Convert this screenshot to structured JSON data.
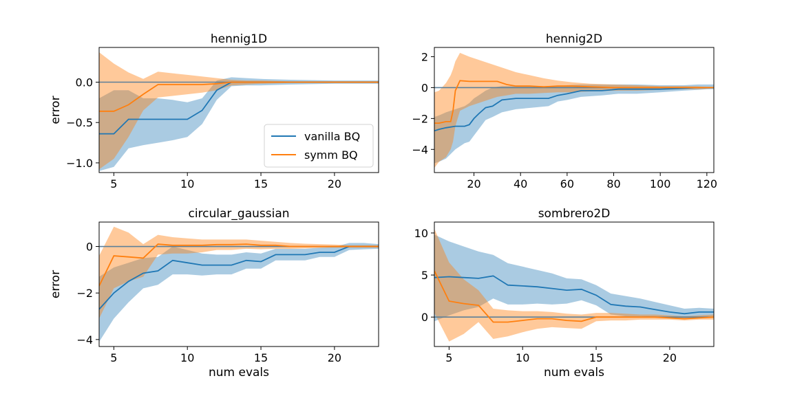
{
  "colors": {
    "vanilla": "#1f77b4",
    "symm": "#ff7f0e",
    "zero_line": "#5b7f99"
  },
  "legend": {
    "entries": [
      "vanilla BQ",
      "symm BQ"
    ],
    "placement": "lower-right",
    "panel": 0
  },
  "chart_data": [
    {
      "type": "line",
      "title": "hennig1D",
      "xlabel": "",
      "ylabel": "error",
      "xlim": [
        4,
        23
      ],
      "ylim": [
        -1.12,
        0.43
      ],
      "xticks": [
        5,
        10,
        15,
        20
      ],
      "yticks": [
        -1.0,
        -0.5,
        0.0
      ],
      "ytick_labels": [
        "−1.0",
        "−0.5",
        "0.0"
      ],
      "series": [
        {
          "name": "vanilla BQ",
          "x": [
            4,
            5,
            6,
            7,
            8,
            9,
            10,
            11,
            12,
            13,
            14,
            15,
            17,
            20,
            23
          ],
          "mean": [
            -0.64,
            -0.64,
            -0.46,
            -0.46,
            -0.46,
            -0.46,
            -0.46,
            -0.35,
            -0.1,
            0.0,
            0.0,
            0.0,
            0.0,
            0.0,
            0.0
          ],
          "upper": [
            -0.2,
            -0.1,
            -0.1,
            -0.2,
            -0.2,
            -0.22,
            -0.25,
            -0.2,
            0.02,
            0.06,
            0.05,
            0.04,
            0.03,
            0.02,
            0.02
          ],
          "lower": [
            -1.1,
            -1.05,
            -0.82,
            -0.78,
            -0.75,
            -0.72,
            -0.68,
            -0.52,
            -0.22,
            -0.05,
            -0.04,
            -0.04,
            -0.03,
            -0.02,
            -0.02
          ]
        },
        {
          "name": "symm BQ",
          "x": [
            4,
            5,
            6,
            7,
            8,
            9,
            10,
            11,
            12,
            13,
            14,
            15,
            17,
            20,
            23
          ],
          "mean": [
            -0.36,
            -0.36,
            -0.28,
            -0.15,
            -0.03,
            -0.03,
            -0.03,
            -0.03,
            -0.02,
            0.0,
            0.0,
            0.0,
            0.0,
            0.0,
            0.0
          ],
          "upper": [
            0.37,
            0.23,
            0.12,
            0.04,
            0.13,
            0.11,
            0.09,
            0.07,
            0.05,
            0.03,
            0.02,
            0.02,
            0.01,
            0.01,
            0.01
          ],
          "lower": [
            -1.08,
            -0.95,
            -0.68,
            -0.35,
            -0.19,
            -0.17,
            -0.15,
            -0.13,
            -0.1,
            -0.04,
            -0.03,
            -0.02,
            -0.01,
            -0.01,
            -0.01
          ]
        }
      ]
    },
    {
      "type": "line",
      "title": "hennig2D",
      "xlabel": "",
      "ylabel": "",
      "xlim": [
        3,
        123
      ],
      "ylim": [
        -5.5,
        2.6
      ],
      "xticks": [
        20,
        40,
        60,
        80,
        100,
        120
      ],
      "yticks": [
        -4,
        -2,
        0,
        2
      ],
      "ytick_labels": [
        "−4",
        "−2",
        "0",
        "2"
      ],
      "series": [
        {
          "name": "vanilla BQ",
          "x": [
            3,
            5,
            8,
            12,
            16,
            18,
            20,
            22,
            25,
            28,
            32,
            38,
            45,
            52,
            56,
            60,
            66,
            75,
            82,
            90,
            100,
            110,
            116,
            120,
            123
          ],
          "mean": [
            -2.8,
            -2.7,
            -2.6,
            -2.5,
            -2.5,
            -2.4,
            -2.0,
            -1.7,
            -1.3,
            -1.2,
            -0.8,
            -0.7,
            -0.7,
            -0.7,
            -0.5,
            -0.4,
            -0.2,
            -0.2,
            -0.1,
            -0.1,
            -0.1,
            -0.05,
            0.0,
            0.0,
            0.0
          ],
          "upper": [
            -1.9,
            -1.8,
            -1.6,
            -1.4,
            -1.2,
            -1.0,
            -0.7,
            -0.5,
            -0.2,
            0.0,
            0.1,
            0.1,
            0.1,
            0.1,
            0.1,
            0.15,
            0.2,
            0.2,
            0.2,
            0.2,
            0.15,
            0.15,
            0.2,
            0.2,
            0.2
          ],
          "lower": [
            -4.9,
            -4.8,
            -4.6,
            -4.0,
            -3.6,
            -3.5,
            -3.1,
            -2.7,
            -2.1,
            -1.9,
            -1.6,
            -1.4,
            -1.3,
            -1.2,
            -0.9,
            -0.8,
            -0.6,
            -0.5,
            -0.4,
            -0.4,
            -0.3,
            -0.2,
            -0.15,
            -0.1,
            -0.1
          ]
        },
        {
          "name": "symm BQ",
          "x": [
            3,
            5,
            8,
            10,
            11,
            12,
            14,
            18,
            22,
            26,
            30,
            34,
            38,
            44,
            50,
            56,
            62,
            70,
            80,
            90,
            100,
            110,
            116,
            120,
            123
          ],
          "mean": [
            -2.3,
            -2.3,
            -2.2,
            -2.2,
            -1.5,
            -0.2,
            0.45,
            0.4,
            0.4,
            0.4,
            0.4,
            0.2,
            0.1,
            0.1,
            0.05,
            0.1,
            0.1,
            0.05,
            0.0,
            0.0,
            0.0,
            0.0,
            0.0,
            0.0,
            0.0
          ],
          "upper": [
            -0.3,
            -0.2,
            0.3,
            0.8,
            1.2,
            1.7,
            2.25,
            2.0,
            1.8,
            1.6,
            1.4,
            1.2,
            1.0,
            0.8,
            0.6,
            0.45,
            0.35,
            0.25,
            0.2,
            0.15,
            0.1,
            0.1,
            0.08,
            0.05,
            0.05
          ],
          "lower": [
            -5.2,
            -4.8,
            -4.5,
            -4.0,
            -3.5,
            -2.5,
            -1.5,
            -1.2,
            -1.0,
            -0.8,
            -0.6,
            -0.5,
            -0.4,
            -0.4,
            -0.35,
            -0.3,
            -0.3,
            -0.25,
            -0.2,
            -0.2,
            -0.15,
            -0.1,
            -0.1,
            -0.08,
            -0.05
          ]
        }
      ]
    },
    {
      "type": "line",
      "title": "circular_gaussian",
      "xlabel": "num evals",
      "ylabel": "error",
      "xlim": [
        4,
        23
      ],
      "ylim": [
        -4.3,
        1.05
      ],
      "xticks": [
        5,
        10,
        15,
        20
      ],
      "yticks": [
        -4,
        -2,
        0
      ],
      "ytick_labels": [
        "−4",
        "−2",
        "0"
      ],
      "series": [
        {
          "name": "vanilla BQ",
          "x": [
            4,
            5,
            6,
            7,
            8,
            9,
            10,
            11,
            12,
            13,
            14,
            15,
            16,
            17,
            18,
            19,
            20,
            21,
            22,
            23
          ],
          "mean": [
            -2.7,
            -2.0,
            -1.5,
            -1.15,
            -1.05,
            -0.6,
            -0.7,
            -0.8,
            -0.8,
            -0.8,
            -0.6,
            -0.65,
            -0.35,
            -0.35,
            -0.35,
            -0.25,
            -0.25,
            0.0,
            0.0,
            0.0
          ],
          "upper": [
            -1.3,
            -0.9,
            -0.7,
            -0.5,
            -0.45,
            0.0,
            -0.15,
            -0.3,
            -0.35,
            -0.35,
            -0.25,
            -0.3,
            -0.1,
            -0.1,
            -0.1,
            -0.05,
            -0.02,
            0.15,
            0.15,
            0.1
          ],
          "lower": [
            -4.1,
            -3.1,
            -2.4,
            -1.8,
            -1.65,
            -1.2,
            -1.2,
            -1.25,
            -1.2,
            -1.2,
            -0.95,
            -0.95,
            -0.6,
            -0.6,
            -0.6,
            -0.45,
            -0.45,
            -0.15,
            -0.12,
            -0.1
          ]
        },
        {
          "name": "symm BQ",
          "x": [
            4,
            5,
            6,
            7,
            8,
            9,
            10,
            11,
            12,
            13,
            14,
            15,
            16,
            17,
            18,
            19,
            20,
            21,
            22,
            23
          ],
          "mean": [
            -1.7,
            -0.4,
            -0.45,
            -0.5,
            0.1,
            0.05,
            0.05,
            0.05,
            0.08,
            0.08,
            0.1,
            0.05,
            0.05,
            0.0,
            0.0,
            0.0,
            0.0,
            0.0,
            0.0,
            0.0
          ],
          "upper": [
            -0.4,
            0.85,
            0.6,
            0.1,
            0.5,
            0.4,
            0.35,
            0.3,
            0.3,
            0.3,
            0.3,
            0.25,
            0.2,
            0.15,
            0.12,
            0.1,
            0.08,
            0.05,
            0.05,
            0.05
          ],
          "lower": [
            -3.1,
            -1.8,
            -1.5,
            -1.3,
            -0.35,
            -0.3,
            -0.3,
            -0.25,
            -0.15,
            -0.15,
            -0.1,
            -0.12,
            -0.1,
            -0.1,
            -0.08,
            -0.06,
            -0.05,
            -0.05,
            -0.05,
            -0.05
          ]
        }
      ]
    },
    {
      "type": "line",
      "title": "sombrero2D",
      "xlabel": "num evals",
      "ylabel": "",
      "xlim": [
        4,
        23
      ],
      "ylim": [
        -3.5,
        11.3
      ],
      "xticks": [
        5,
        10,
        15,
        20
      ],
      "yticks": [
        0,
        5,
        10
      ],
      "ytick_labels": [
        "0",
        "5",
        "10"
      ],
      "series": [
        {
          "name": "vanilla BQ",
          "x": [
            4,
            5,
            6,
            7,
            8,
            9,
            10,
            11,
            12,
            13,
            14,
            15,
            16,
            17,
            18,
            19,
            20,
            21,
            22,
            23
          ],
          "mean": [
            4.7,
            4.8,
            4.7,
            4.6,
            4.9,
            3.8,
            3.7,
            3.6,
            3.4,
            3.2,
            3.3,
            2.6,
            1.5,
            1.3,
            1.2,
            0.9,
            0.6,
            0.4,
            0.6,
            0.6
          ],
          "upper": [
            9.8,
            9.0,
            8.4,
            7.8,
            7.4,
            6.4,
            6.0,
            5.6,
            5.2,
            4.6,
            4.5,
            3.8,
            2.8,
            2.5,
            2.2,
            1.8,
            1.4,
            1.0,
            1.1,
            1.0
          ],
          "lower": [
            -0.5,
            0.2,
            0.8,
            1.2,
            2.2,
            1.5,
            1.5,
            1.6,
            1.5,
            1.6,
            2.0,
            1.4,
            0.3,
            0.1,
            0.1,
            0.0,
            -0.1,
            -0.2,
            0.0,
            0.1
          ]
        },
        {
          "name": "symm BQ",
          "x": [
            4,
            5,
            6,
            7,
            8,
            9,
            10,
            11,
            12,
            13,
            14,
            15,
            16,
            17,
            18,
            19,
            20,
            21,
            22,
            23
          ],
          "mean": [
            5.5,
            1.9,
            1.6,
            1.4,
            -0.6,
            -0.6,
            -0.4,
            -0.2,
            -0.2,
            -0.4,
            -0.5,
            0.0,
            0.0,
            0.0,
            0.0,
            0.0,
            -0.1,
            -0.2,
            -0.1,
            0.0
          ],
          "upper": [
            10.5,
            6.5,
            4.5,
            3.2,
            1.0,
            0.8,
            0.7,
            0.7,
            0.6,
            0.4,
            0.3,
            0.5,
            0.5,
            0.4,
            0.3,
            0.3,
            0.2,
            0.1,
            0.2,
            0.3
          ],
          "lower": [
            0.5,
            -2.9,
            -2.0,
            -0.6,
            -2.6,
            -2.3,
            -1.8,
            -1.4,
            -1.2,
            -1.3,
            -1.4,
            -0.5,
            -0.4,
            -0.4,
            -0.3,
            -0.3,
            -0.3,
            -0.4,
            -0.3,
            -0.3
          ]
        }
      ]
    }
  ]
}
